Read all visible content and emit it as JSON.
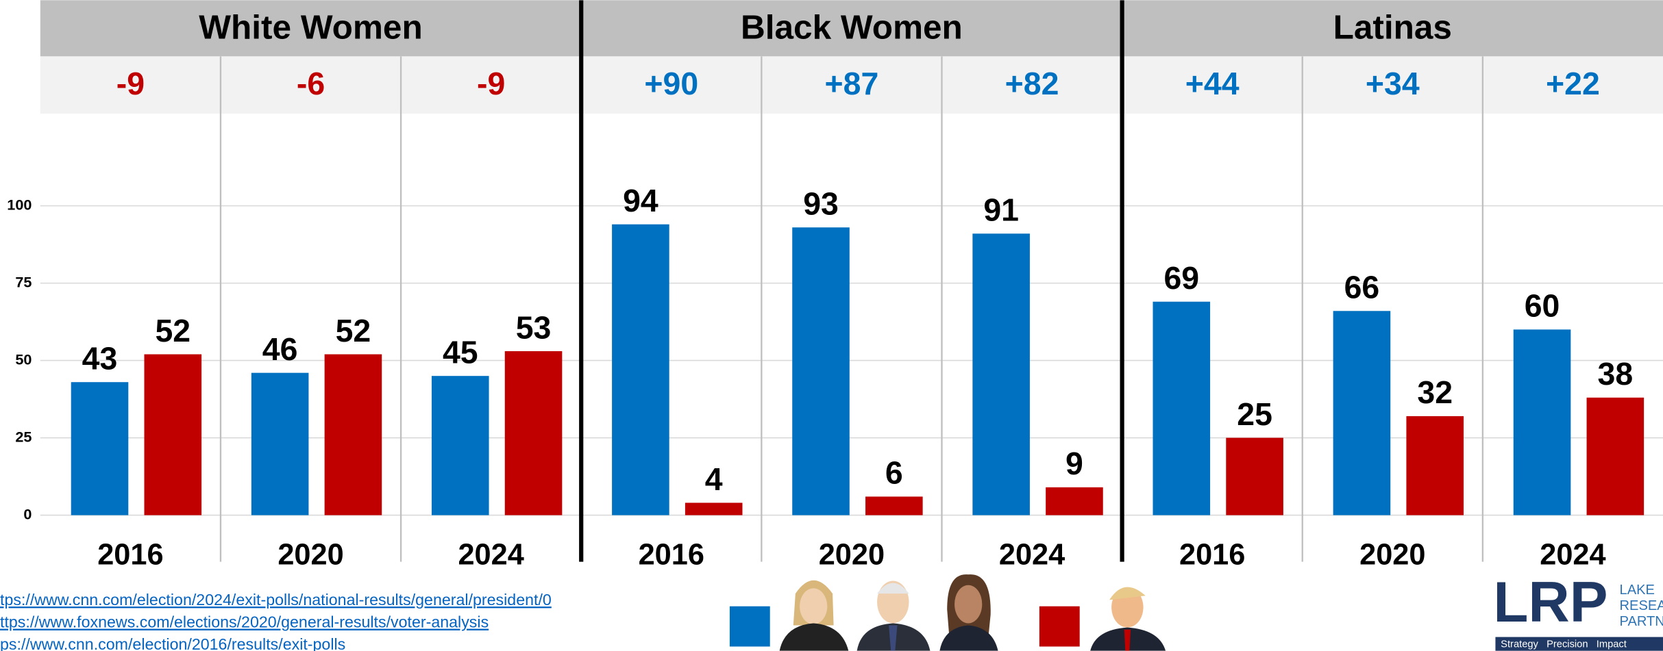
{
  "chart_data": {
    "type": "bar",
    "groups": [
      "White Women",
      "Black Women",
      "Latinas"
    ],
    "categories": [
      "2016",
      "2020",
      "2024",
      "2016",
      "2020",
      "2024",
      "2016",
      "2020",
      "2024"
    ],
    "margins": {
      "values": [
        -9,
        -6,
        -9,
        90,
        87,
        82,
        44,
        34,
        22
      ],
      "value_labels": [
        "-9",
        "-6",
        "-9",
        "+90",
        "+87",
        "+82",
        "+44",
        "+34",
        "+22"
      ]
    },
    "series": [
      {
        "color": "#0070c0",
        "values": [
          43,
          46,
          45,
          94,
          93,
          91,
          69,
          66,
          60
        ]
      },
      {
        "color": "#c00000",
        "values": [
          52,
          52,
          53,
          4,
          6,
          9,
          25,
          32,
          38
        ]
      }
    ],
    "ylim": [
      0,
      130
    ],
    "yticks": [
      0,
      25,
      50,
      75,
      100
    ],
    "grid": true,
    "sources": [
      "tps://www.cnn.com/election/2024/exit-polls/national-results/general/president/0",
      "ttps://www.foxnews.com/elections/2020/general-results/voter-analysis",
      "ps://www.cnn.com/election/2016/results/exit-polls"
    ],
    "logo": {
      "mark": "LRP",
      "lines": [
        "LAKE",
        "RESEA",
        "PARTN"
      ],
      "tagline": "Strategy   Precision   Impact"
    }
  }
}
